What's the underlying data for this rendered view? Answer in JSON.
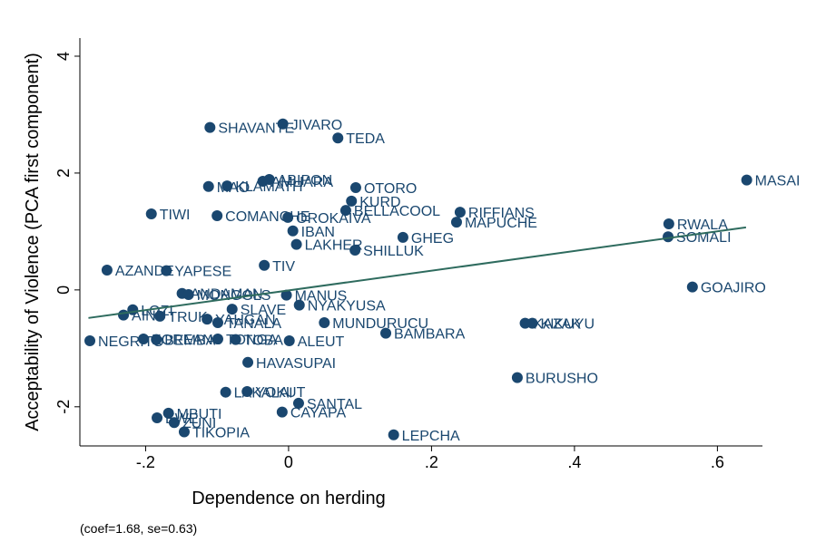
{
  "chart_data": {
    "type": "scatter",
    "x_label": "Dependence on herding",
    "y_label": "Acceptability of Violence (PCA first component)",
    "note": "(coef=1.68, se=0.63)",
    "color": "#1a476f",
    "fit_color": "#2e6b5e",
    "xlim": [
      -0.292,
      0.663
    ],
    "ylim": [
      -2.67,
      4.31
    ],
    "xticks": [
      {
        "value": -0.2,
        "label": "-.2"
      },
      0,
      {
        "value": 0.2,
        "label": ".2"
      },
      {
        "value": 0.4,
        "label": ".4"
      },
      {
        "value": 0.6,
        "label": ".6"
      }
    ],
    "yticks": [
      -2,
      0,
      2,
      4
    ],
    "fit": {
      "x": [
        -0.28,
        0.64
      ],
      "y": [
        -0.48,
        1.07
      ]
    },
    "labels": [
      "SHAVANTE",
      "JIVARO",
      "TEDA",
      "MASAI",
      "AMHARA",
      "ABIPON",
      "KLAMATH",
      "MAO",
      "OTORO",
      "KURD",
      "BELLACOOL",
      "RIFFIANS",
      "TIWI",
      "COMANCHE",
      "OROKAIVA",
      "MAPUCHE",
      "RWALA",
      "SOMALI",
      "IBAN",
      "GHEG",
      "LAKHER",
      "SHILLUK",
      "TIV",
      "AZANDE",
      "YAPESE",
      "GOAJIRO",
      "ANDAMAN",
      "MONGOLS",
      "MANUS",
      "NYAKYUSA",
      "SLAVE",
      "LOZI",
      "AINU",
      "TRUK",
      "YAHGAN",
      "TANALA",
      "MUNDURUCU",
      "KAZAK",
      "KIKUYU",
      "BAMBARA",
      "NEGRITO",
      "KOREANS",
      "BEMBA",
      "TONGA",
      "TOBA",
      "ALEUT",
      "HAVASUPAI",
      "BURUSHO",
      "LAKALAI",
      "YOKUT",
      "SANTAL",
      "CAYAPA",
      "MBUTI",
      "EWE",
      "ZUNI",
      "TIKOPIA",
      "LEPCHA"
    ],
    "x": [
      -0.11,
      -0.008,
      0.069,
      0.641,
      -0.036,
      -0.027,
      -0.086,
      -0.112,
      0.094,
      0.088,
      0.08,
      0.24,
      -0.192,
      -0.1,
      -0.001,
      0.235,
      0.532,
      0.531,
      0.006,
      0.16,
      0.011,
      0.093,
      -0.034,
      -0.254,
      -0.171,
      0.565,
      -0.149,
      -0.14,
      -0.003,
      0.015,
      -0.079,
      -0.218,
      -0.231,
      -0.18,
      -0.114,
      -0.099,
      0.05,
      0.331,
      0.341,
      0.136,
      -0.278,
      -0.203,
      -0.185,
      -0.099,
      -0.074,
      0.001,
      -0.057,
      0.32,
      -0.088,
      -0.058,
      0.014,
      -0.009,
      -0.168,
      -0.184,
      -0.16,
      -0.146,
      0.147
    ],
    "y": [
      2.78,
      2.84,
      2.6,
      1.88,
      1.86,
      1.89,
      1.78,
      1.77,
      1.75,
      1.52,
      1.36,
      1.33,
      1.3,
      1.27,
      1.24,
      1.16,
      1.13,
      0.91,
      1.01,
      0.9,
      0.78,
      0.68,
      0.42,
      0.34,
      0.33,
      0.05,
      -0.06,
      -0.08,
      -0.09,
      -0.26,
      -0.33,
      -0.34,
      -0.43,
      -0.45,
      -0.5,
      -0.56,
      -0.56,
      -0.57,
      -0.57,
      -0.74,
      -0.87,
      -0.84,
      -0.85,
      -0.84,
      -0.85,
      -0.87,
      -1.24,
      -1.5,
      -1.75,
      -1.74,
      -1.94,
      -2.09,
      -2.11,
      -2.19,
      -2.27,
      -2.43,
      -2.48
    ]
  }
}
